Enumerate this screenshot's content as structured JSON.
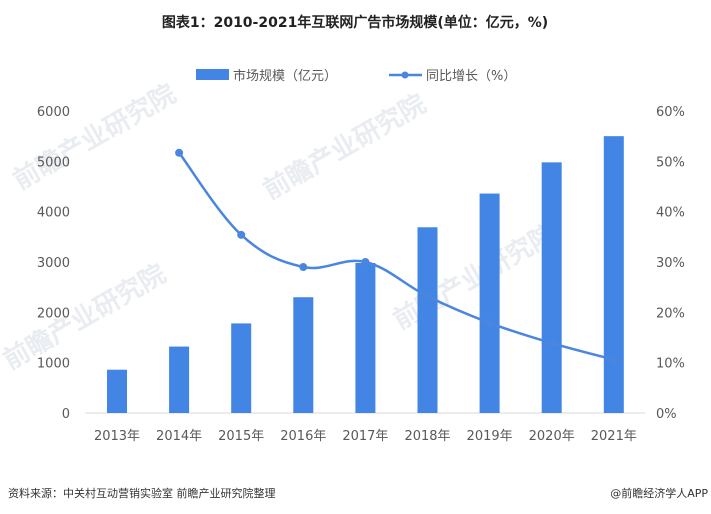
{
  "chart_data": {
    "type": "bar+line",
    "title": "图表1：2010-2021年互联网广告市场规模(单位：亿元，%)",
    "categories": [
      "2013年",
      "2014年",
      "2015年",
      "2016年",
      "2017年",
      "2018年",
      "2019年",
      "2020年",
      "2021年"
    ],
    "series": [
      {
        "name": "市场规模（亿元）",
        "type": "bar",
        "axis": "left",
        "color": "#4285e4",
        "values": [
          860,
          1320,
          1780,
          2300,
          2980,
          3690,
          4360,
          4980,
          5500
        ]
      },
      {
        "name": "同比增长（%）",
        "type": "line",
        "axis": "right",
        "color": "#4a86e0",
        "values": [
          null,
          51.7,
          35.4,
          29.0,
          30.0,
          23.2,
          17.9,
          13.9,
          10.6
        ]
      }
    ],
    "y_left": {
      "range": [
        0,
        6000
      ],
      "ticks": [
        "0",
        "1000",
        "2000",
        "3000",
        "4000",
        "5000",
        "6000"
      ]
    },
    "y_right": {
      "range": [
        0,
        60
      ],
      "ticks": [
        "0%",
        "10%",
        "20%",
        "30%",
        "40%",
        "50%",
        "60%"
      ]
    },
    "grid": false,
    "legend": "top"
  },
  "footer": {
    "source": "资料来源：中关村互动营销实验室 前瞻产业研究院整理",
    "credit": "@前瞻经济学人APP"
  },
  "watermark": "前瞻产业研究院"
}
